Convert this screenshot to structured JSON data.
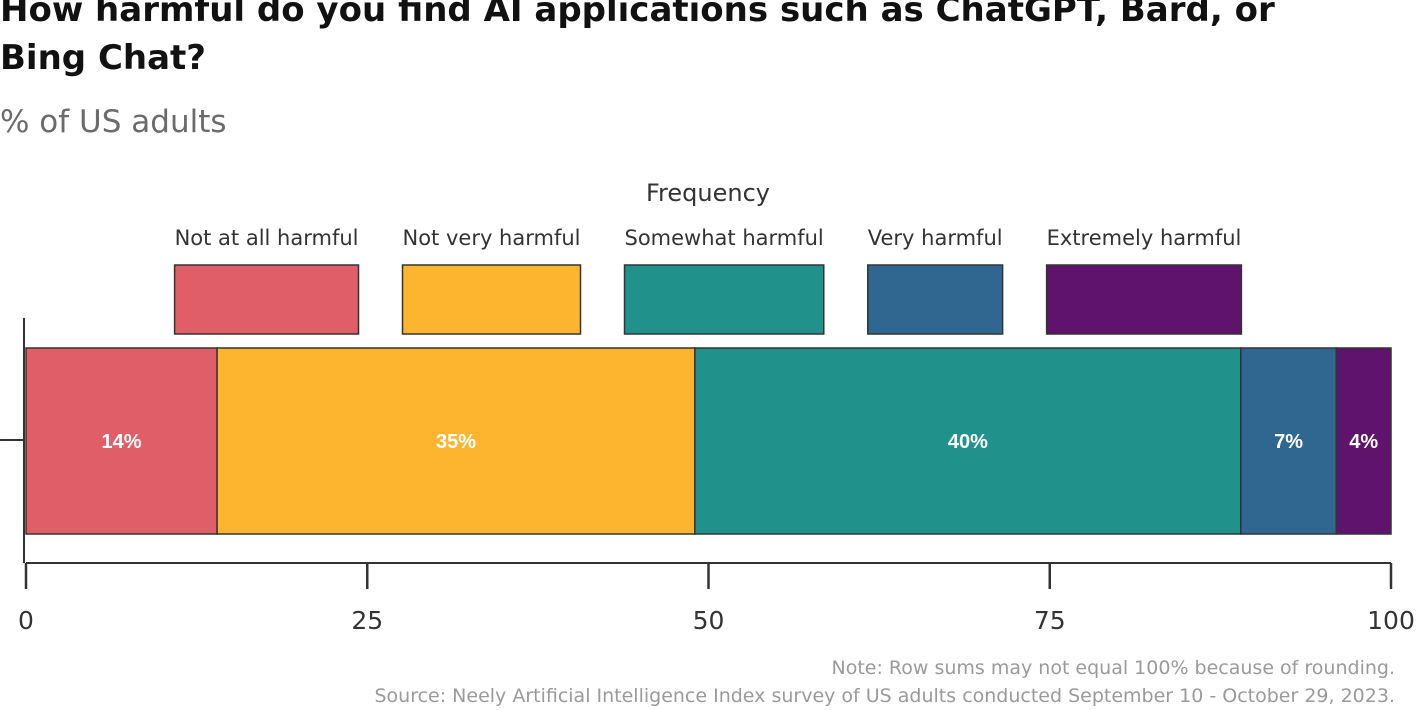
{
  "title": "How harmful do you find AI applications such as ChatGPT, Bard, or Bing Chat?",
  "subtitle": "% of US adults",
  "chart_data": {
    "type": "bar",
    "orientation": "horizontal",
    "stacked": true,
    "legend_title": "Frequency",
    "legend_position": "top",
    "series": [
      {
        "name": "Not at all harmful",
        "values": [
          14
        ],
        "label": "14%",
        "color": "#e05e68"
      },
      {
        "name": "Not very harmful",
        "values": [
          35
        ],
        "label": "35%",
        "color": "#fdb52f"
      },
      {
        "name": "Somewhat harmful",
        "values": [
          40
        ],
        "label": "40%",
        "color": "#21928b"
      },
      {
        "name": "Very harmful",
        "values": [
          7
        ],
        "label": "7%",
        "color": "#2f6790"
      },
      {
        "name": "Extremely harmful",
        "values": [
          4
        ],
        "label": "4%",
        "color": "#5f136d"
      }
    ],
    "xlim": [
      0,
      100
    ],
    "xticks": [
      0,
      25,
      50,
      75,
      100
    ],
    "grid": false
  },
  "notes": {
    "note": "Note: Row sums may not equal 100% because of rounding.",
    "source": "Source: Neely Artificial Intelligence Index survey of US adults conducted September 10 - October 29, 2023."
  }
}
